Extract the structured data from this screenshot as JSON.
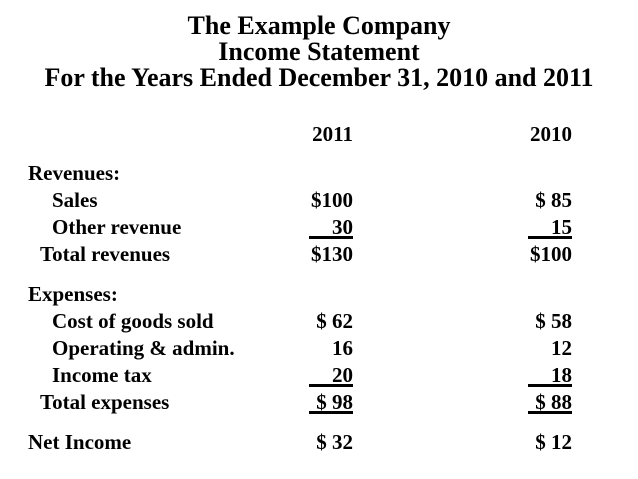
{
  "colors": {
    "background": "#ffffff",
    "text": "#000000"
  },
  "title": {
    "company": "The Example Company",
    "statement": "Income Statement",
    "period": "For the Years Ended December 31, 2010 and 2011"
  },
  "statement": {
    "column_headers": {
      "col1": "2011",
      "col2": "2010"
    },
    "rows": [
      {
        "label": "Revenues:",
        "v1": "",
        "v2": "",
        "style": "section",
        "underline": false
      },
      {
        "label": "Sales",
        "v1": "$100",
        "v2": "$ 85",
        "style": "item",
        "underline": false
      },
      {
        "label": "Other revenue",
        "v1": "30",
        "v2": "15",
        "style": "item",
        "underline": true
      },
      {
        "label": "Total revenues",
        "v1": "$130",
        "v2": "$100",
        "style": "total",
        "underline": false
      },
      {
        "label": "Expenses:",
        "v1": "",
        "v2": "",
        "style": "section",
        "underline": false
      },
      {
        "label": "Cost of goods sold",
        "v1": "$ 62",
        "v2": "$ 58",
        "style": "item",
        "underline": false
      },
      {
        "label": "Operating & admin.",
        "v1": "16",
        "v2": "12",
        "style": "item",
        "underline": false
      },
      {
        "label": "Income tax",
        "v1": "20",
        "v2": "18",
        "style": "item",
        "underline": true
      },
      {
        "label": "Total expenses",
        "v1": "$ 98",
        "v2": "$ 88",
        "style": "total",
        "underline": true
      },
      {
        "label": "Net Income",
        "v1": "$ 32",
        "v2": "$ 12",
        "style": "section",
        "underline": false
      }
    ]
  }
}
